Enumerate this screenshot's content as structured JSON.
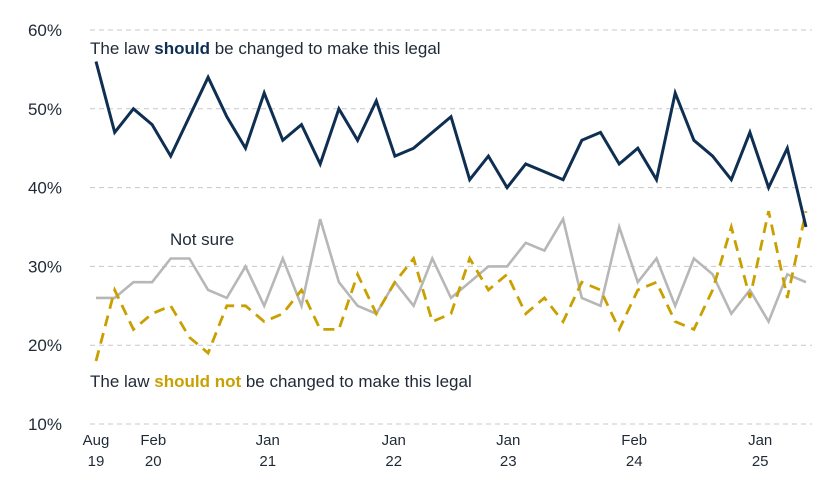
{
  "chart_data": {
    "type": "line",
    "title": "",
    "xlabel": "",
    "ylabel": "",
    "ylim": [
      10,
      60
    ],
    "grid": true,
    "y_ticks": [
      "10%",
      "20%",
      "30%",
      "40%",
      "50%",
      "60%"
    ],
    "x_ticks": [
      {
        "line1": "Aug",
        "line2": "19",
        "x": 0
      },
      {
        "line1": "Feb",
        "line2": "20",
        "x": 5
      },
      {
        "line1": "Jan",
        "line2": "21",
        "x": 15
      },
      {
        "line1": "Jan",
        "line2": "22",
        "x": 26
      },
      {
        "line1": "Jan",
        "line2": "23",
        "x": 36
      },
      {
        "line1": "Feb",
        "line2": "24",
        "x": 47
      },
      {
        "line1": "Jan",
        "line2": "25",
        "x": 58
      }
    ],
    "x": [
      0,
      1,
      2,
      3,
      4,
      5,
      6,
      7,
      8,
      9,
      10,
      11,
      12,
      13,
      14,
      15,
      16,
      17,
      18,
      19,
      20,
      21,
      22,
      23,
      24,
      25,
      26,
      27,
      28,
      29,
      30,
      31,
      32,
      33,
      34,
      35,
      36,
      37,
      38,
      39,
      40,
      41,
      42,
      43,
      44,
      45,
      46,
      47,
      48,
      49,
      50,
      51,
      52,
      53,
      54,
      55,
      56,
      57,
      58,
      59,
      60,
      61,
      62
    ],
    "series": [
      {
        "name": "should",
        "color": "#0e2f52",
        "style": "solid",
        "points": [
          [
            0,
            56
          ],
          [
            2,
            47
          ],
          [
            4,
            50
          ],
          [
            6,
            48
          ],
          [
            8,
            44
          ],
          [
            12,
            54
          ],
          [
            14,
            49
          ],
          [
            16,
            45
          ],
          [
            18,
            52
          ],
          [
            20,
            46
          ],
          [
            22,
            48
          ],
          [
            24,
            43
          ],
          [
            26,
            50
          ],
          [
            28,
            46
          ],
          [
            30,
            51
          ],
          [
            32,
            44
          ],
          [
            34,
            45
          ],
          [
            38,
            49
          ],
          [
            40,
            41
          ],
          [
            42,
            44
          ],
          [
            44,
            40
          ],
          [
            46,
            43
          ],
          [
            48,
            42
          ],
          [
            50,
            41
          ],
          [
            52,
            46
          ],
          [
            54,
            47
          ],
          [
            56,
            43
          ],
          [
            58,
            45
          ],
          [
            60,
            41
          ],
          [
            62,
            52
          ],
          [
            64,
            46
          ],
          [
            66,
            44
          ],
          [
            68,
            41
          ],
          [
            70,
            47
          ],
          [
            72,
            40
          ],
          [
            74,
            45
          ],
          [
            76,
            35
          ]
        ]
      },
      {
        "name": "should not",
        "color": "#c9a000",
        "style": "dashed",
        "points": [
          [
            0,
            18
          ],
          [
            2,
            27
          ],
          [
            4,
            22
          ],
          [
            6,
            24
          ],
          [
            8,
            25
          ],
          [
            10,
            21
          ],
          [
            12,
            19
          ],
          [
            14,
            25
          ],
          [
            16,
            25
          ],
          [
            18,
            23
          ],
          [
            20,
            24
          ],
          [
            22,
            27
          ],
          [
            24,
            22
          ],
          [
            26,
            22
          ],
          [
            28,
            29
          ],
          [
            30,
            24
          ],
          [
            32,
            28
          ],
          [
            34,
            31
          ],
          [
            36,
            23
          ],
          [
            38,
            24
          ],
          [
            40,
            31
          ],
          [
            42,
            27
          ],
          [
            44,
            29
          ],
          [
            46,
            24
          ],
          [
            48,
            26
          ],
          [
            50,
            23
          ],
          [
            52,
            28
          ],
          [
            54,
            27
          ],
          [
            56,
            22
          ],
          [
            58,
            27
          ],
          [
            60,
            28
          ],
          [
            62,
            23
          ],
          [
            64,
            22
          ],
          [
            66,
            27
          ],
          [
            68,
            35
          ],
          [
            70,
            26
          ],
          [
            72,
            37
          ],
          [
            74,
            26
          ],
          [
            76,
            37
          ]
        ]
      },
      {
        "name": "Not sure",
        "color": "#b7b7b7",
        "style": "solid",
        "points": [
          [
            0,
            26
          ],
          [
            2,
            26
          ],
          [
            4,
            28
          ],
          [
            6,
            28
          ],
          [
            8,
            31
          ],
          [
            10,
            31
          ],
          [
            12,
            27
          ],
          [
            14,
            26
          ],
          [
            16,
            30
          ],
          [
            18,
            25
          ],
          [
            20,
            31
          ],
          [
            22,
            25
          ],
          [
            24,
            36
          ],
          [
            26,
            28
          ],
          [
            28,
            25
          ],
          [
            30,
            24
          ],
          [
            32,
            28
          ],
          [
            34,
            25
          ],
          [
            36,
            31
          ],
          [
            38,
            26
          ],
          [
            40,
            28
          ],
          [
            42,
            30
          ],
          [
            44,
            30
          ],
          [
            46,
            33
          ],
          [
            48,
            32
          ],
          [
            50,
            36
          ],
          [
            52,
            26
          ],
          [
            54,
            25
          ],
          [
            56,
            35
          ],
          [
            58,
            28
          ],
          [
            60,
            31
          ],
          [
            62,
            25
          ],
          [
            64,
            31
          ],
          [
            66,
            29
          ],
          [
            68,
            24
          ],
          [
            70,
            27
          ],
          [
            72,
            23
          ],
          [
            74,
            29
          ],
          [
            76,
            28
          ]
        ]
      }
    ],
    "annotations": {
      "top_prefix": "The law ",
      "top_emph": "should",
      "top_suffix": " be changed to make this legal",
      "not_sure": "Not sure",
      "bottom_prefix": "The law ",
      "bottom_emph": "should not",
      "bottom_suffix": " be changed to make this legal"
    }
  }
}
